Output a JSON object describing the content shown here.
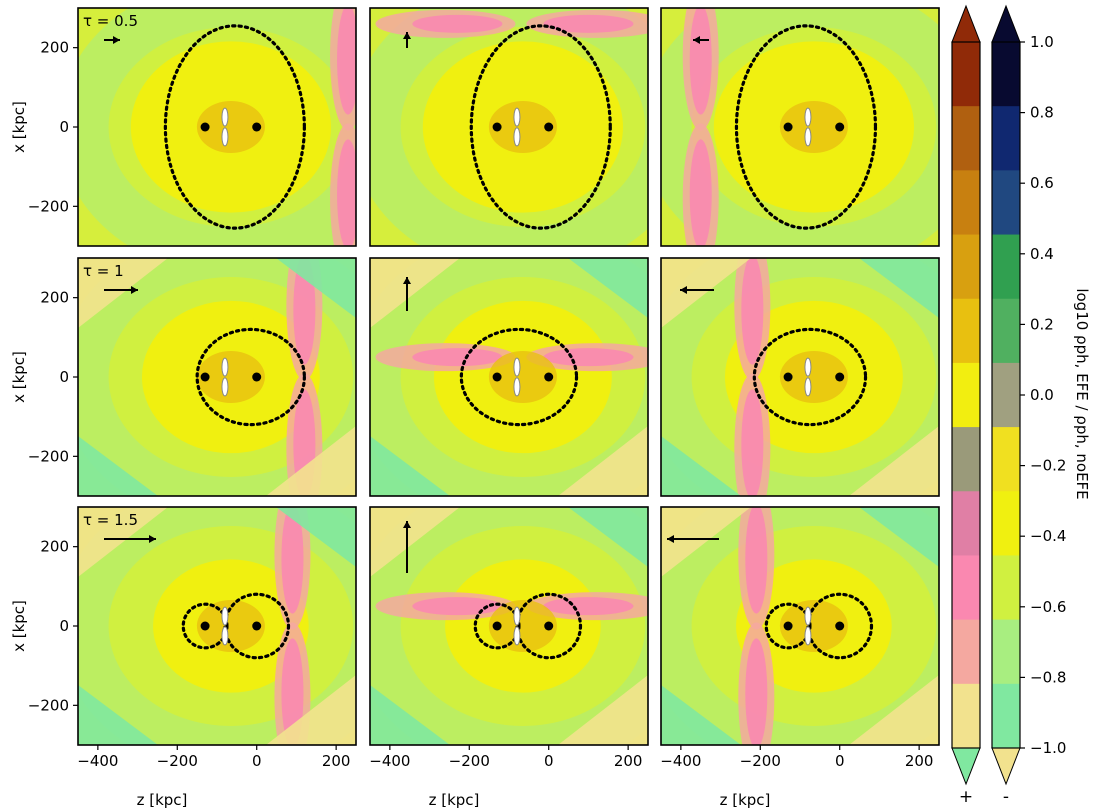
{
  "chart_data": {
    "type": "heatmap",
    "layout": {
      "rows": 3,
      "cols": 3
    },
    "xlabel": "z [kpc]",
    "ylabel": "x [kpc]",
    "xlim": [
      -450,
      250
    ],
    "ylim": [
      -300,
      300
    ],
    "x_ticks": [
      -400,
      -200,
      0,
      200
    ],
    "y_ticks": [
      -200,
      0,
      200
    ],
    "x_tick_labels": [
      "−400",
      "−200",
      "0",
      "200"
    ],
    "y_tick_labels": [
      "−200",
      "0",
      "200"
    ],
    "row_labels": [
      "τ = 0.5",
      "τ = 1",
      "τ = 1.5"
    ],
    "galaxy_points": [
      [
        -130,
        0
      ],
      [
        0,
        0
      ]
    ],
    "colorbar": {
      "label": "log10 ρph, EFE / ρph, noEFE",
      "ticks": [
        1.0,
        0.8,
        0.6,
        0.4,
        0.2,
        0.0,
        -0.2,
        -0.4,
        -0.6,
        -0.8,
        -1.0
      ],
      "tick_labels": [
        "1.0",
        "0.8",
        "0.6",
        "0.4",
        "0.2",
        "0.0",
        "−0.2",
        "−0.4",
        "−0.6",
        "−0.8",
        "−1.0"
      ],
      "range": [
        -1.0,
        1.0
      ],
      "extend": "both",
      "positive_label": "+",
      "negative_label": "-",
      "positive_colors": [
        "#f2e28e",
        "#f4a8a0",
        "#fa88b0",
        "#e07fa5",
        "#9a9a7a",
        "#f2ee10",
        "#e8c010",
        "#d8a010",
        "#c88010",
        "#b06010",
        "#902a08"
      ],
      "positive_colors_over": "#902a08",
      "positive_colors_under": "#80e8a0",
      "negative_colors": [
        "#80e8a0",
        "#a8ee80",
        "#d0f040",
        "#f0f010",
        "#f0e020",
        "#a0a080",
        "#50b060",
        "#30a050",
        "#204880",
        "#102870",
        "#080a30"
      ],
      "negative_colors_over": "#080a30",
      "negative_colors_under": "#f2e28e"
    },
    "panels": [
      {
        "row": 0,
        "col": 0,
        "arrow": "right",
        "efe_strength": 0.5
      },
      {
        "row": 0,
        "col": 1,
        "arrow": "up",
        "efe_strength": 0.5
      },
      {
        "row": 0,
        "col": 2,
        "arrow": "left",
        "efe_strength": 0.5
      },
      {
        "row": 1,
        "col": 0,
        "arrow": "right",
        "efe_strength": 1
      },
      {
        "row": 1,
        "col": 1,
        "arrow": "up",
        "efe_strength": 1
      },
      {
        "row": 1,
        "col": 2,
        "arrow": "left",
        "efe_strength": 1
      },
      {
        "row": 2,
        "col": 0,
        "arrow": "right",
        "efe_strength": 1.5
      },
      {
        "row": 2,
        "col": 1,
        "arrow": "up",
        "efe_strength": 1.5
      },
      {
        "row": 2,
        "col": 2,
        "arrow": "left",
        "efe_strength": 1.5
      }
    ],
    "boundaries": [
      {
        "panel": 0,
        "shape": "ellipse",
        "center": [
          -55,
          0
        ],
        "rx": 175,
        "ry": 255
      },
      {
        "panel": 1,
        "shape": "ellipse",
        "center": [
          -20,
          0
        ],
        "rx": 175,
        "ry": 255
      },
      {
        "panel": 2,
        "shape": "ellipse",
        "center": [
          -85,
          0
        ],
        "rx": 175,
        "ry": 255
      },
      {
        "panel": 3,
        "shape": "ellipse",
        "center": [
          -15,
          0
        ],
        "rx": 135,
        "ry": 120
      },
      {
        "panel": 4,
        "shape": "ellipse",
        "center": [
          -75,
          0
        ],
        "rx": 145,
        "ry": 120
      },
      {
        "panel": 5,
        "shape": "ellipse",
        "center": [
          -75,
          0
        ],
        "rx": 140,
        "ry": 120
      },
      {
        "panel": 6,
        "shape": "two-circles",
        "circles": [
          [
            -130,
            0,
            55
          ],
          [
            0,
            0,
            80
          ]
        ]
      },
      {
        "panel": 7,
        "shape": "two-circles",
        "circles": [
          [
            -130,
            0,
            55
          ],
          [
            0,
            0,
            80
          ]
        ]
      },
      {
        "panel": 8,
        "shape": "two-circles",
        "circles": [
          [
            -130,
            0,
            55
          ],
          [
            0,
            0,
            80
          ]
        ]
      }
    ]
  }
}
